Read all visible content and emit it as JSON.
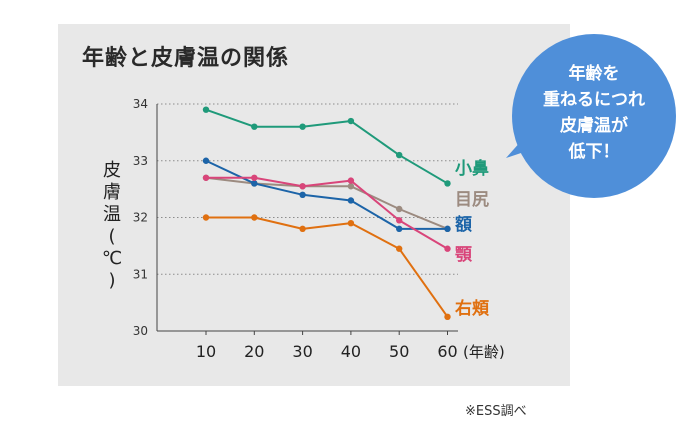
{
  "title": "年齢と皮膚温の関係",
  "source": "※ESS調べ",
  "callout": {
    "lines": [
      "年齢を",
      "重ねるにつれ",
      "皮膚温が",
      "低下！"
    ],
    "color": "#4f8fd9"
  },
  "chart_data": {
    "type": "line",
    "ylabel": "皮膚温(℃)",
    "xlabel": "(年齢)",
    "x": [
      10,
      20,
      30,
      40,
      50,
      60
    ],
    "x_tick_labels": [
      "10",
      "20",
      "30",
      "40",
      "50",
      "60"
    ],
    "ylim": [
      30,
      34
    ],
    "y_ticks": [
      30,
      31,
      32,
      33,
      34
    ],
    "grid": true,
    "legend_placement": "right",
    "series": [
      {
        "name": "小鼻",
        "color": "#1f9a7a",
        "values": [
          33.9,
          33.6,
          33.6,
          33.7,
          33.1,
          32.6
        ]
      },
      {
        "name": "目尻",
        "color": "#9c8b80",
        "values": [
          32.7,
          32.6,
          32.55,
          32.55,
          32.15,
          31.8
        ]
      },
      {
        "name": "額",
        "color": "#1c64a8",
        "values": [
          33.0,
          32.6,
          32.4,
          32.3,
          31.8,
          31.8
        ]
      },
      {
        "name": "顎",
        "color": "#d9457a",
        "values": [
          32.7,
          32.7,
          32.55,
          32.65,
          31.95,
          31.45
        ]
      },
      {
        "name": "右頬",
        "color": "#e07010",
        "values": [
          32.0,
          32.0,
          31.8,
          31.9,
          31.45,
          30.25
        ]
      }
    ]
  }
}
